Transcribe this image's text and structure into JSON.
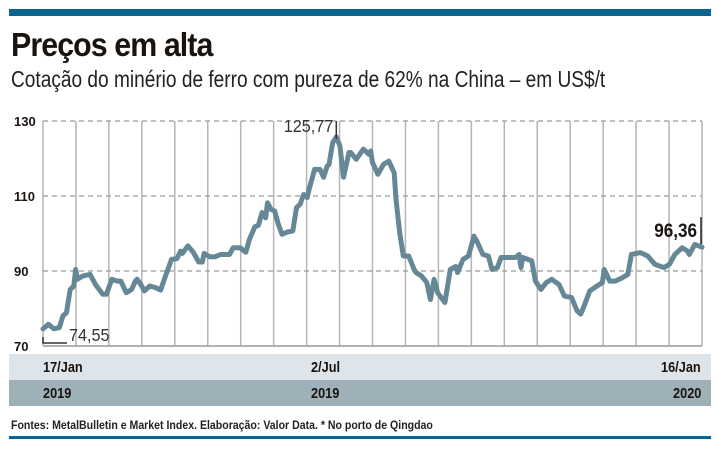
{
  "header": {
    "title": "Preços em alta",
    "subtitle": "Cotação do minério de ferro com pureza de 62% na China – em US$/t"
  },
  "chart_data": {
    "type": "line",
    "title": "Preços em alta",
    "subtitle": "Cotação do minério de ferro com pureza de 62% na China – em US$/t",
    "xlabel": "",
    "ylabel": "US$/t",
    "x_unit": "days since 17/Jan/2019",
    "xlim": [
      0,
      364
    ],
    "ylim": [
      70,
      130
    ],
    "yticks": [
      "130",
      "110",
      "90",
      "70"
    ],
    "ytick_values": [
      130,
      110,
      90,
      70
    ],
    "grid": true,
    "x_tick_labels": [
      {
        "date": "17/Jan",
        "year": "2019",
        "day": 0
      },
      {
        "date": "2/Jul",
        "year": "2019",
        "day": 166
      },
      {
        "date": "16/Jan",
        "year": "2020",
        "day": 364
      }
    ],
    "annotations": {
      "min": {
        "label": "74,55",
        "day": 0,
        "value": 74.55
      },
      "max": {
        "label": "125,77",
        "day": 162,
        "value": 125.77
      },
      "last": {
        "label": "96,36",
        "day": 364,
        "value": 96.36
      }
    },
    "series": [
      {
        "name": "Minério de ferro 62%",
        "color": "#668796",
        "x": [
          0,
          3,
          6,
          9,
          11,
          13,
          15,
          17,
          18,
          19,
          22,
          26,
          29,
          33,
          35,
          38,
          41,
          43,
          46,
          49,
          51,
          52,
          54,
          56,
          59,
          62,
          65,
          67,
          69,
          71,
          74,
          76,
          77,
          80,
          83,
          86,
          88,
          89,
          92,
          95,
          98,
          103,
          105,
          109,
          112,
          114,
          117,
          119,
          121,
          123,
          124,
          126,
          128,
          130,
          132,
          135,
          138,
          140,
          142,
          144,
          146,
          147,
          150,
          153,
          155,
          157,
          158,
          160,
          162,
          164,
          166,
          169,
          170,
          173,
          177,
          180,
          181,
          182,
          185,
          188,
          191,
          194,
          195,
          197,
          199,
          202,
          205,
          206,
          209,
          212,
          214,
          216,
          218,
          222,
          225,
          228,
          229,
          232,
          235,
          238,
          240,
          243,
          246,
          248,
          251,
          253,
          257,
          261,
          263,
          264,
          265,
          270,
          272,
          275,
          278,
          281,
          285,
          288,
          292,
          295,
          297,
          299,
          302,
          306,
          309,
          310,
          313,
          316,
          320,
          323,
          325,
          330,
          334,
          338,
          343,
          346,
          349,
          353,
          356,
          357,
          360,
          364
        ],
        "values": [
          74.55,
          75.8,
          74.6,
          74.9,
          78,
          78.9,
          85.1,
          86,
          90.4,
          87.8,
          88.7,
          89.1,
          86.4,
          83.8,
          83.8,
          87.8,
          87.3,
          87.3,
          84.2,
          85.1,
          87.3,
          87.8,
          86.4,
          84.7,
          86,
          85.6,
          84.9,
          87.8,
          90.4,
          93.1,
          93.3,
          95.3,
          94.7,
          96.7,
          95,
          92.4,
          92.4,
          94.7,
          93.8,
          93.8,
          94.4,
          94.4,
          96.2,
          96.2,
          95,
          98.4,
          101.8,
          102.2,
          105.6,
          104.2,
          108.2,
          106.4,
          106,
          102.4,
          99.8,
          100.4,
          100.7,
          106.9,
          107.8,
          110.4,
          109.6,
          111.8,
          117.1,
          117.1,
          115,
          118,
          118.4,
          124.2,
          125.77,
          123.4,
          115,
          121.6,
          121.6,
          119.8,
          122.5,
          121.1,
          122,
          118.9,
          115.8,
          118.4,
          119.3,
          116.2,
          109.1,
          100.2,
          94,
          94,
          90.4,
          89.6,
          88.7,
          86.9,
          82.4,
          87.8,
          84.2,
          81.6,
          90.4,
          91.2,
          89.6,
          93.1,
          94,
          99.3,
          97.6,
          94.4,
          94,
          90.4,
          90.9,
          93.6,
          93.6,
          93.6,
          94.4,
          90.9,
          93.6,
          92.7,
          87.3,
          85.1,
          86.9,
          87.8,
          86.4,
          83.3,
          82.9,
          79.4,
          78.5,
          80.8,
          84.7,
          86,
          86.9,
          90.4,
          87.3,
          87.3,
          88.2,
          89.1,
          94.4,
          94.9,
          94,
          91.8,
          90.9,
          91.8,
          94.4,
          96.2,
          95.3,
          94.4,
          97.1,
          96.36
        ]
      }
    ]
  },
  "footer": {
    "source": "Fontes: MetalBulletin e Market Index. Elaboração: Valor Data. * No porto de Qingdao"
  }
}
